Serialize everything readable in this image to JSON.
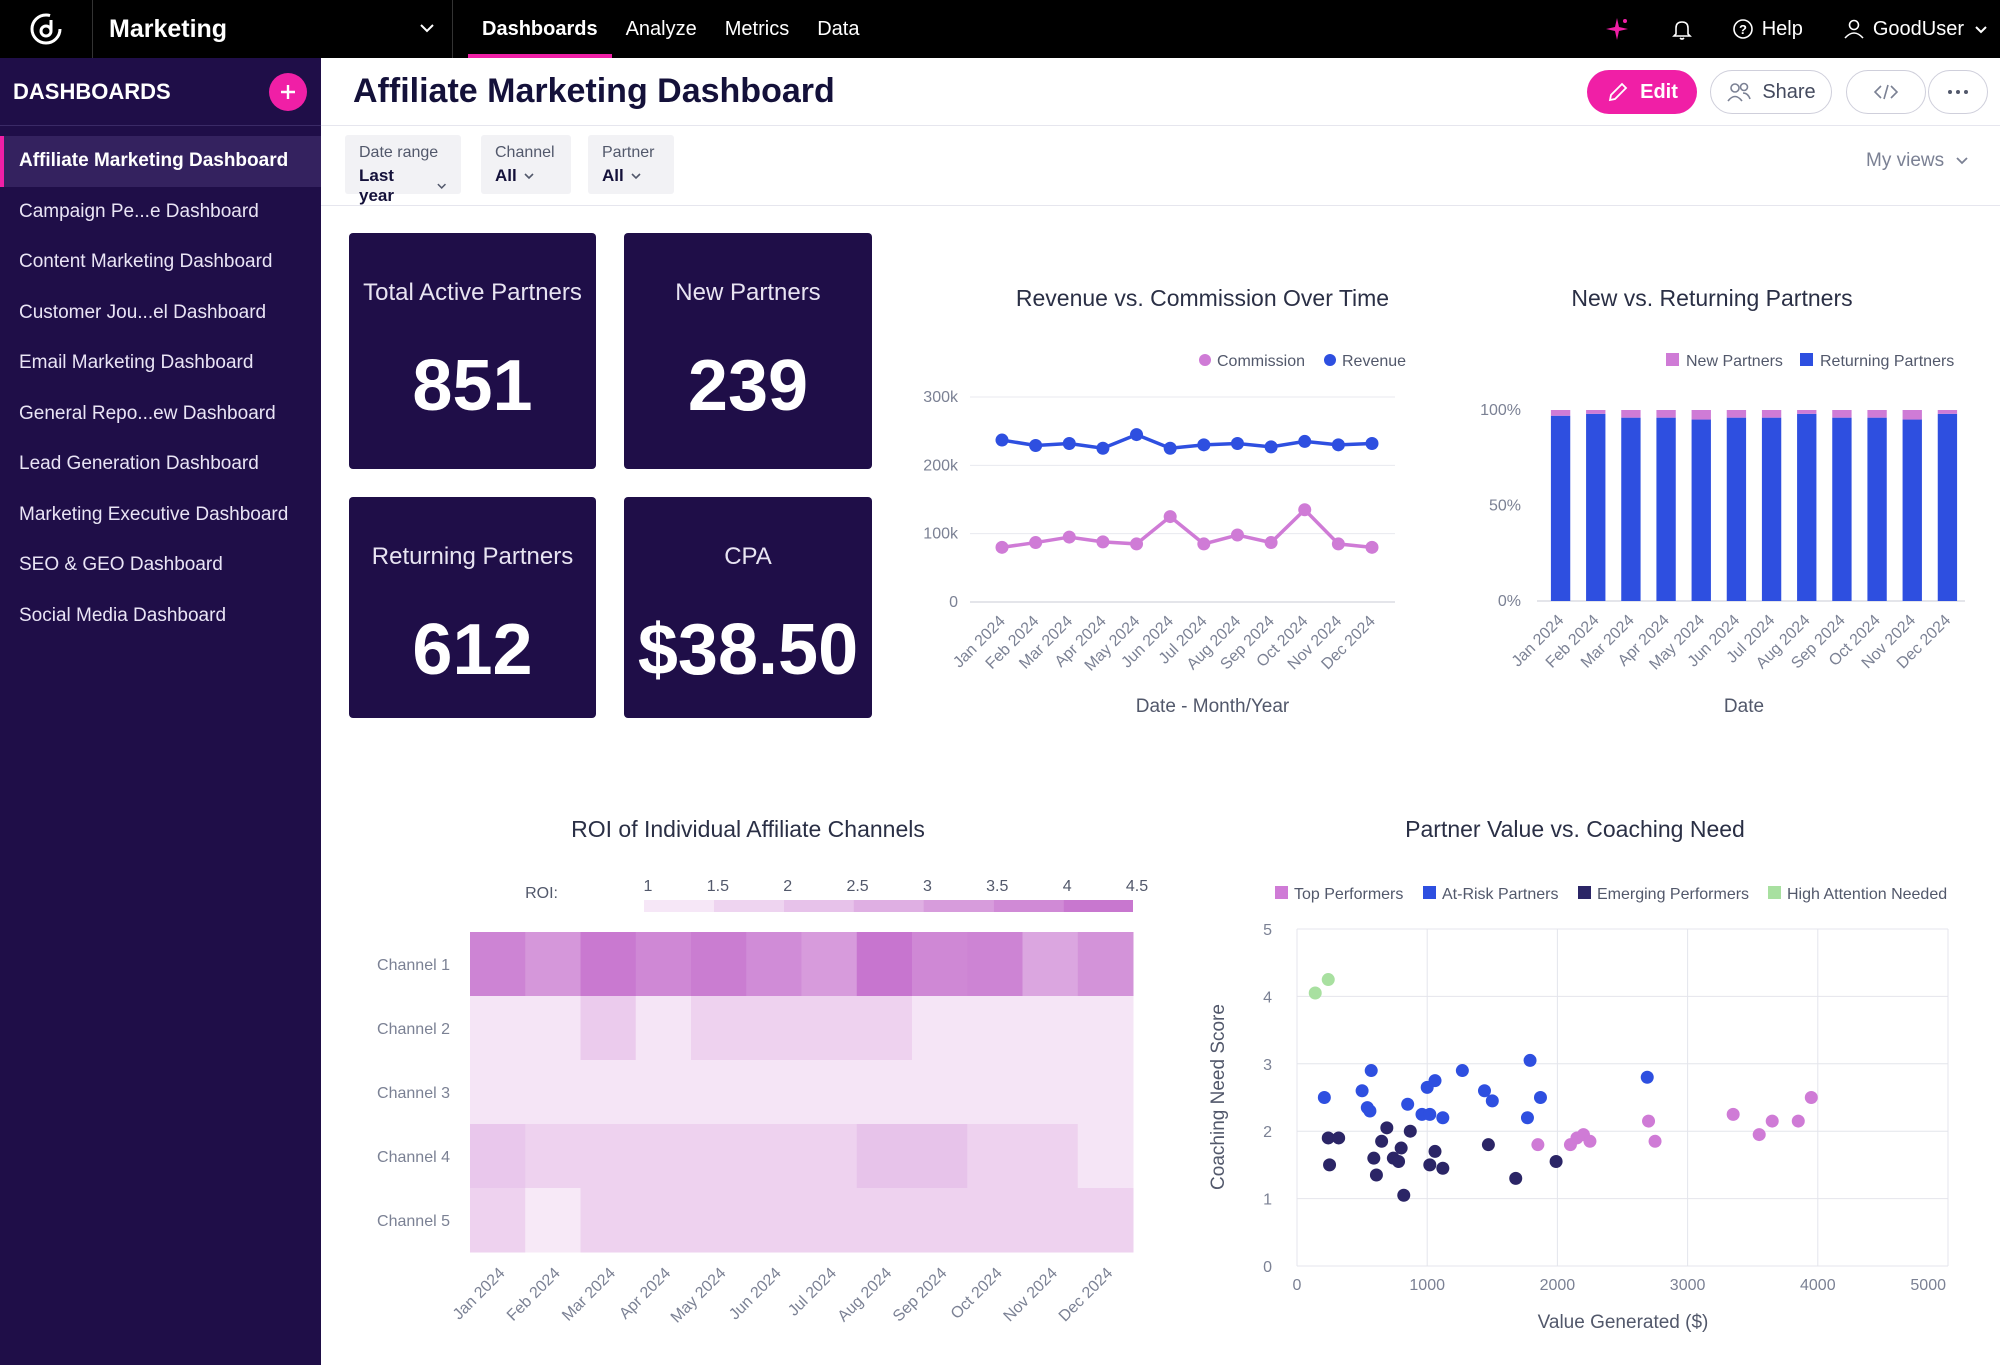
{
  "topbar": {
    "workspace": "Marketing",
    "nav": [
      "Dashboards",
      "Analyze",
      "Metrics",
      "Data"
    ],
    "active_nav": "Dashboards",
    "help_label": "Help",
    "user_label": "GoodUser",
    "accent_color": "#f01fa6"
  },
  "sidebar": {
    "title": "DASHBOARDS",
    "items": [
      "Affiliate Marketing Dashboard",
      "Campaign Pe...e Dashboard",
      "Content Marketing Dashboard",
      "Customer Jou...el Dashboard",
      "Email Marketing Dashboard",
      "General Repo...ew Dashboard",
      "Lead Generation Dashboard",
      "Marketing Executive Dashboard",
      "SEO & GEO Dashboard",
      "Social Media Dashboard"
    ],
    "active_item": "Affiliate Marketing Dashboard"
  },
  "header": {
    "title": "Affiliate Marketing Dashboard",
    "edit_label": "Edit",
    "share_label": "Share"
  },
  "filters": {
    "date_range": {
      "label": "Date range",
      "value": "Last year"
    },
    "channel": {
      "label": "Channel",
      "value": "All"
    },
    "partner": {
      "label": "Partner",
      "value": "All"
    },
    "my_views": "My views"
  },
  "kpis": {
    "total_active_partners": {
      "label": "Total Active Partners",
      "value": "851"
    },
    "new_partners": {
      "label": "New Partners",
      "value": "239"
    },
    "returning_partners": {
      "label": "Returning Partners",
      "value": "612"
    },
    "cpa": {
      "label": "CPA",
      "value": "$38.50"
    }
  },
  "chart_data": [
    {
      "id": "revenue_commission",
      "type": "line",
      "title": "Revenue vs. Commission Over Time",
      "xlabel": "Date - Month/Year",
      "ylabel": "",
      "categories": [
        "Jan 2024",
        "Feb 2024",
        "Mar 2024",
        "Apr 2024",
        "May 2024",
        "Jun 2024",
        "Jul 2024",
        "Aug 2024",
        "Sep 2024",
        "Oct 2024",
        "Nov 2024",
        "Dec 2024"
      ],
      "ylim": [
        0,
        300000
      ],
      "yticks": [
        0,
        100000,
        200000,
        300000
      ],
      "ytick_labels": [
        "0",
        "100k",
        "200k",
        "300k"
      ],
      "series": [
        {
          "name": "Commission",
          "color": "#cf7bd6",
          "values": [
            80000,
            87000,
            95000,
            88000,
            85000,
            125000,
            85000,
            98000,
            87000,
            135000,
            85000,
            80000
          ]
        },
        {
          "name": "Revenue",
          "color": "#2e4fe0",
          "values": [
            237000,
            229000,
            232000,
            225000,
            245000,
            225000,
            230000,
            232000,
            227000,
            235000,
            230000,
            232000
          ]
        }
      ],
      "legend": [
        "Commission",
        "Revenue"
      ]
    },
    {
      "id": "new_returning",
      "type": "bar",
      "stacked": true,
      "title": "New vs. Returning Partners",
      "xlabel": "Date",
      "ylabel": "",
      "categories": [
        "Jan 2024",
        "Feb 2024",
        "Mar 2024",
        "Apr 2024",
        "May 2024",
        "Jun 2024",
        "Jul 2024",
        "Aug 2024",
        "Sep 2024",
        "Oct 2024",
        "Nov 2024",
        "Dec 2024"
      ],
      "ylim": [
        0,
        100
      ],
      "yticks": [
        0,
        50,
        100
      ],
      "ytick_labels": [
        "0%",
        "50%",
        "100%"
      ],
      "series": [
        {
          "name": "Returning Partners",
          "color": "#2e4fe0",
          "values": [
            97,
            98,
            96,
            96,
            95,
            96,
            96,
            98,
            96,
            96,
            95,
            98
          ]
        },
        {
          "name": "New Partners",
          "color": "#cf7bd6",
          "values": [
            3,
            2,
            4,
            4,
            5,
            4,
            4,
            2,
            4,
            4,
            5,
            2
          ]
        }
      ],
      "legend": [
        "New Partners",
        "Returning Partners"
      ]
    },
    {
      "id": "roi_heatmap",
      "type": "heatmap",
      "title": "ROI of Individual Affiliate Channels",
      "legend_label": "ROI:",
      "scale_ticks": [
        "1",
        "1.5",
        "2",
        "2.5",
        "3",
        "3.5",
        "4",
        "4.5"
      ],
      "scale_min": 1,
      "scale_max": 4.5,
      "rows": [
        "Channel 1",
        "Channel 2",
        "Channel 3",
        "Channel 4",
        "Channel 5"
      ],
      "columns": [
        "Jan 2024",
        "Feb 2024",
        "Mar 2024",
        "Apr 2024",
        "May 2024",
        "Jun 2024",
        "Jul 2024",
        "Aug 2024",
        "Sep 2024",
        "Oct 2024",
        "Nov 2024",
        "Dec 2024"
      ],
      "values": [
        [
          3.9,
          3.4,
          4.2,
          3.8,
          4.1,
          3.7,
          3.3,
          4.3,
          3.8,
          3.9,
          3.0,
          3.5
        ],
        [
          1.3,
          1.3,
          2.0,
          1.3,
          1.8,
          1.8,
          1.8,
          1.8,
          1.3,
          1.3,
          1.3,
          1.3
        ],
        [
          1.3,
          1.3,
          1.3,
          1.3,
          1.3,
          1.3,
          1.3,
          1.3,
          1.3,
          1.3,
          1.3,
          1.3
        ],
        [
          2.1,
          1.8,
          1.8,
          1.8,
          1.8,
          1.8,
          1.8,
          2.2,
          2.2,
          1.8,
          1.8,
          1.3
        ],
        [
          1.8,
          1.2,
          1.8,
          1.8,
          1.8,
          1.8,
          1.8,
          1.8,
          1.8,
          1.8,
          1.8,
          1.8
        ]
      ]
    },
    {
      "id": "partner_value",
      "type": "scatter",
      "title": "Partner Value vs. Coaching Need",
      "xlabel": "Value Generated ($)",
      "ylabel": "Coaching Need Score",
      "xlim": [
        0,
        5000
      ],
      "ylim": [
        0,
        5
      ],
      "xticks": [
        0,
        1000,
        2000,
        3000,
        4000,
        5000
      ],
      "yticks": [
        0,
        1,
        2,
        3,
        4,
        5
      ],
      "legend": [
        "Top Performers",
        "At-Risk Partners",
        "Emerging Performers",
        "High Attention Needed"
      ],
      "series": [
        {
          "name": "Top Performers",
          "color": "#cf7bd6",
          "points": [
            [
              1850,
              1.8
            ],
            [
              2100,
              1.8
            ],
            [
              2150,
              1.9
            ],
            [
              2200,
              1.95
            ],
            [
              2250,
              1.85
            ],
            [
              2700,
              2.15
            ],
            [
              2750,
              1.85
            ],
            [
              3350,
              2.25
            ],
            [
              3550,
              1.95
            ],
            [
              3650,
              2.15
            ],
            [
              3850,
              2.15
            ],
            [
              3950,
              2.5
            ]
          ]
        },
        {
          "name": "At-Risk Partners",
          "color": "#2e4fe0",
          "points": [
            [
              210,
              2.5
            ],
            [
              500,
              2.6
            ],
            [
              540,
              2.35
            ],
            [
              560,
              2.3
            ],
            [
              570,
              2.9
            ],
            [
              850,
              2.4
            ],
            [
              960,
              2.25
            ],
            [
              1000,
              2.65
            ],
            [
              1020,
              2.25
            ],
            [
              1060,
              2.75
            ],
            [
              1120,
              2.2
            ],
            [
              1270,
              2.9
            ],
            [
              1440,
              2.6
            ],
            [
              1500,
              2.45
            ],
            [
              1770,
              2.2
            ],
            [
              1790,
              3.05
            ],
            [
              1870,
              2.5
            ],
            [
              2690,
              2.8
            ]
          ]
        },
        {
          "name": "Emerging Performers",
          "color": "#2b2566",
          "points": [
            [
              240,
              1.9
            ],
            [
              250,
              1.5
            ],
            [
              320,
              1.9
            ],
            [
              590,
              1.6
            ],
            [
              610,
              1.35
            ],
            [
              650,
              1.85
            ],
            [
              690,
              2.05
            ],
            [
              740,
              1.6
            ],
            [
              780,
              1.55
            ],
            [
              800,
              1.75
            ],
            [
              820,
              1.05
            ],
            [
              870,
              2.0
            ],
            [
              1020,
              1.5
            ],
            [
              1060,
              1.7
            ],
            [
              1120,
              1.45
            ],
            [
              1470,
              1.8
            ],
            [
              1680,
              1.3
            ],
            [
              1990,
              1.55
            ]
          ]
        },
        {
          "name": "High Attention Needed",
          "color": "#a8e0a0",
          "points": [
            [
              140,
              4.05
            ],
            [
              240,
              4.25
            ]
          ]
        }
      ]
    }
  ]
}
